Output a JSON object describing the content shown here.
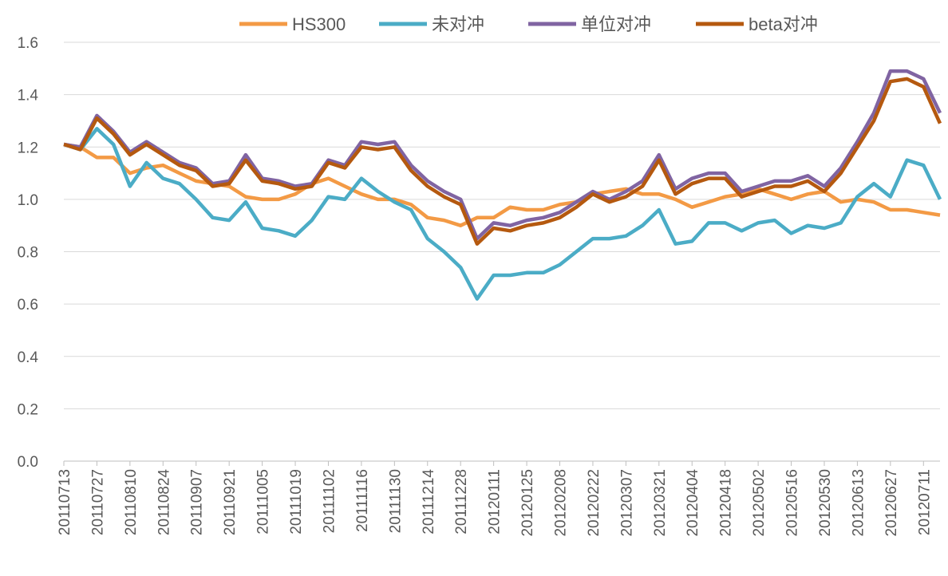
{
  "chart_data": {
    "type": "line",
    "categories": [
      "20110713",
      null,
      "20110727",
      null,
      "20110810",
      null,
      "20110824",
      null,
      "20110907",
      null,
      "20110921",
      null,
      "20111005",
      null,
      "20111019",
      null,
      "20111102",
      null,
      "20111116",
      null,
      "20111130",
      null,
      "20111214",
      null,
      "20111228",
      null,
      "20120111",
      null,
      "20120125",
      null,
      "20120208",
      null,
      "20120222",
      null,
      "20120307",
      null,
      "20120321",
      null,
      "20120404",
      null,
      "20120418",
      null,
      "20120502",
      null,
      "20120516",
      null,
      "20120530",
      null,
      "20120613",
      null,
      "20120627",
      null,
      "20120711",
      null
    ],
    "series": [
      {
        "name": "HS300",
        "color": "#f39a45",
        "values": [
          1.21,
          1.2,
          1.16,
          1.16,
          1.1,
          1.12,
          1.13,
          1.1,
          1.07,
          1.06,
          1.05,
          1.01,
          1.0,
          1.0,
          1.02,
          1.06,
          1.08,
          1.05,
          1.02,
          1.0,
          1.0,
          0.98,
          0.93,
          0.92,
          0.9,
          0.93,
          0.93,
          0.97,
          0.96,
          0.96,
          0.98,
          0.99,
          1.02,
          1.03,
          1.04,
          1.02,
          1.02,
          1.0,
          0.97,
          0.99,
          1.01,
          1.02,
          1.04,
          1.02,
          1.0,
          1.02,
          1.03,
          0.99,
          1.0,
          0.99,
          0.96,
          0.96,
          0.95,
          0.94
        ]
      },
      {
        "name": "未对冲",
        "color": "#4bacc6",
        "values": [
          1.21,
          1.19,
          1.27,
          1.21,
          1.05,
          1.14,
          1.08,
          1.06,
          1.0,
          0.93,
          0.92,
          0.99,
          0.89,
          0.88,
          0.86,
          0.92,
          1.01,
          1.0,
          1.08,
          1.03,
          0.99,
          0.96,
          0.85,
          0.8,
          0.74,
          0.62,
          0.71,
          0.71,
          0.72,
          0.72,
          0.75,
          0.8,
          0.85,
          0.85,
          0.86,
          0.9,
          0.96,
          0.83,
          0.84,
          0.91,
          0.91,
          0.88,
          0.91,
          0.92,
          0.87,
          0.9,
          0.89,
          0.91,
          1.01,
          1.06,
          1.01,
          1.15,
          1.13,
          1.0
        ]
      },
      {
        "name": "单位对冲",
        "color": "#8064a2",
        "values": [
          1.21,
          1.2,
          1.32,
          1.26,
          1.18,
          1.22,
          1.18,
          1.14,
          1.12,
          1.06,
          1.07,
          1.17,
          1.08,
          1.07,
          1.05,
          1.06,
          1.15,
          1.13,
          1.22,
          1.21,
          1.22,
          1.13,
          1.07,
          1.03,
          1.0,
          0.85,
          0.91,
          0.9,
          0.92,
          0.93,
          0.95,
          0.99,
          1.03,
          1.0,
          1.03,
          1.07,
          1.17,
          1.04,
          1.08,
          1.1,
          1.1,
          1.03,
          1.05,
          1.07,
          1.07,
          1.09,
          1.05,
          1.12,
          1.22,
          1.33,
          1.49,
          1.49,
          1.46,
          1.33
        ]
      },
      {
        "name": "beta对冲",
        "color": "#b5590f",
        "values": [
          1.21,
          1.19,
          1.31,
          1.25,
          1.17,
          1.21,
          1.17,
          1.13,
          1.11,
          1.05,
          1.06,
          1.15,
          1.07,
          1.06,
          1.04,
          1.05,
          1.14,
          1.12,
          1.2,
          1.19,
          1.2,
          1.11,
          1.05,
          1.01,
          0.98,
          0.83,
          0.89,
          0.88,
          0.9,
          0.91,
          0.93,
          0.97,
          1.02,
          0.99,
          1.01,
          1.05,
          1.15,
          1.02,
          1.06,
          1.08,
          1.08,
          1.01,
          1.03,
          1.05,
          1.05,
          1.07,
          1.03,
          1.1,
          1.2,
          1.3,
          1.45,
          1.46,
          1.43,
          1.29
        ]
      }
    ],
    "ylim": [
      0,
      1.6
    ],
    "yticks": [
      {
        "value": 0,
        "label": "0.0"
      },
      {
        "value": 0.2,
        "label": "0.2"
      },
      {
        "value": 0.4,
        "label": "0.4"
      },
      {
        "value": 0.6,
        "label": "0.6"
      },
      {
        "value": 0.8,
        "label": "0.8"
      },
      {
        "value": 1,
        "label": "1.0"
      },
      {
        "value": 1.2,
        "label": "1.2"
      },
      {
        "value": 1.4,
        "label": "1.4"
      },
      {
        "value": 1.6,
        "label": "1.6"
      }
    ],
    "grid": true,
    "legend": "top"
  }
}
